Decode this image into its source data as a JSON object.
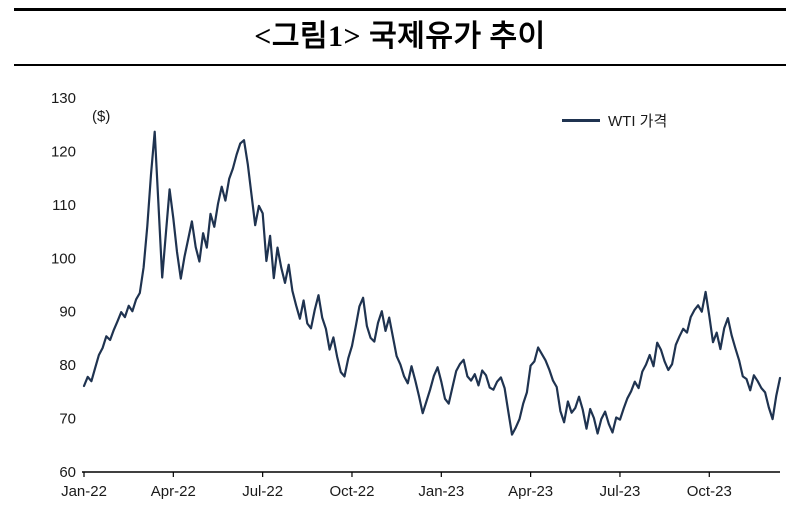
{
  "title": "<그림1> 국제유가 추이",
  "chart_data": {
    "type": "line",
    "title": "<그림1> 국제유가 추이",
    "unit_label": "($)",
    "legend": [
      "WTI 가격"
    ],
    "legend_position": "top-right",
    "grid": false,
    "ylim": [
      60,
      130
    ],
    "yticks": [
      60,
      70,
      80,
      90,
      100,
      110,
      120,
      130
    ],
    "x_tick_labels": [
      "Jan-22",
      "Apr-22",
      "Jul-22",
      "Oct-22",
      "Jan-23",
      "Apr-23",
      "Jul-23",
      "Oct-23"
    ],
    "x_tick_indices": [
      0,
      24,
      48,
      72,
      96,
      120,
      144,
      168
    ],
    "points_per_month": 8,
    "colors": {
      "line": "#1f3350",
      "axis": "#000000",
      "text": "#1a1a1a"
    },
    "series": [
      {
        "name": "WTI 가격",
        "values": [
          76.1,
          77.8,
          77.0,
          79.5,
          81.9,
          83.2,
          85.4,
          84.7,
          86.6,
          88.2,
          89.9,
          89.0,
          91.1,
          90.1,
          92.3,
          93.5,
          98.3,
          106.0,
          115.7,
          123.7,
          110.3,
          96.4,
          104.7,
          112.9,
          107.5,
          101.2,
          96.2,
          100.3,
          103.6,
          106.9,
          102.1,
          99.4,
          104.7,
          102.0,
          108.3,
          105.9,
          110.2,
          113.4,
          110.8,
          114.9,
          116.8,
          119.4,
          121.5,
          122.1,
          117.6,
          111.9,
          106.2,
          109.8,
          108.4,
          99.5,
          104.2,
          96.3,
          102.0,
          98.2,
          95.4,
          98.8,
          93.9,
          91.2,
          88.7,
          92.1,
          87.8,
          86.9,
          90.4,
          93.1,
          88.9,
          86.8,
          82.9,
          85.2,
          81.6,
          78.7,
          77.9,
          81.3,
          83.6,
          87.2,
          91.0,
          92.6,
          87.3,
          85.1,
          84.4,
          87.9,
          90.1,
          86.4,
          88.9,
          85.3,
          81.7,
          80.1,
          77.9,
          76.6,
          79.8,
          77.1,
          74.2,
          71.0,
          73.2,
          75.4,
          78.0,
          79.6,
          76.9,
          73.7,
          72.8,
          75.9,
          78.9,
          80.2,
          81.0,
          77.9,
          77.1,
          78.3,
          76.2,
          79.0,
          78.1,
          75.8,
          75.4,
          76.9,
          77.7,
          75.7,
          71.3,
          67.0,
          68.3,
          69.9,
          72.8,
          74.9,
          79.9,
          80.7,
          83.3,
          82.1,
          80.9,
          79.2,
          77.1,
          75.9,
          71.4,
          69.3,
          73.2,
          71.1,
          72.0,
          74.1,
          71.7,
          68.1,
          71.8,
          70.1,
          67.2,
          69.9,
          71.3,
          69.0,
          67.4,
          70.2,
          69.8,
          71.9,
          73.8,
          75.1,
          76.9,
          75.7,
          78.8,
          80.1,
          81.9,
          79.8,
          84.2,
          82.9,
          80.7,
          79.1,
          80.2,
          83.8,
          85.4,
          86.8,
          86.1,
          89.0,
          90.3,
          91.2,
          90.0,
          93.7,
          89.2,
          84.3,
          86.1,
          83.0,
          86.9,
          88.8,
          85.6,
          83.2,
          80.9,
          77.9,
          77.4,
          75.3,
          78.1,
          77.0,
          75.7,
          74.9,
          72.1,
          69.9,
          74.3,
          77.6
        ]
      }
    ]
  }
}
